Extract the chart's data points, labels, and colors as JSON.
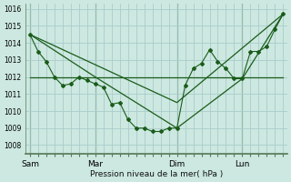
{
  "bg_color": "#cce8e0",
  "grid_color": "#aacccc",
  "plot_bg": "#cce8e0",
  "line_color": "#1a5c1a",
  "xlabel": "Pression niveau de la mer( hPa )",
  "ylim": [
    1007.5,
    1016.3
  ],
  "yticks": [
    1008,
    1009,
    1010,
    1011,
    1012,
    1013,
    1014,
    1015,
    1016
  ],
  "day_labels": [
    "Sam",
    "Mar",
    "Dim",
    "Lun"
  ],
  "day_positions": [
    0,
    16,
    36,
    52
  ],
  "xlim": [
    -1,
    63
  ],
  "line1_x": [
    0,
    2,
    4,
    6,
    8,
    10,
    12,
    14,
    16,
    18,
    20,
    22,
    24,
    26,
    28,
    30,
    32,
    34,
    36,
    38,
    40,
    42,
    44,
    46,
    48,
    50,
    52,
    54,
    56,
    58,
    60,
    62
  ],
  "line1_y": [
    1014.5,
    1013.5,
    1012.9,
    1012.0,
    1011.5,
    1011.6,
    1012.0,
    1011.8,
    1011.6,
    1011.4,
    1010.4,
    1010.5,
    1009.5,
    1009.0,
    1009.0,
    1008.8,
    1008.8,
    1009.0,
    1009.0,
    1011.5,
    1012.5,
    1012.8,
    1013.6,
    1012.9,
    1012.5,
    1011.9,
    1011.9,
    1013.5,
    1013.5,
    1013.8,
    1014.8,
    1015.7
  ],
  "line2_x": [
    0,
    16,
    36,
    52,
    62
  ],
  "line2_y": [
    1012.0,
    1012.0,
    1012.0,
    1012.0,
    1012.0
  ],
  "line3_x": [
    0,
    16,
    36,
    52,
    62
  ],
  "line3_y": [
    1014.5,
    1012.0,
    1009.0,
    1011.9,
    1015.7
  ],
  "line4_x": [
    0,
    62
  ],
  "line4_y": [
    1012.0,
    1012.0
  ],
  "line5_x": [
    0,
    36,
    62
  ],
  "line5_y": [
    1014.5,
    1010.5,
    1015.7
  ]
}
